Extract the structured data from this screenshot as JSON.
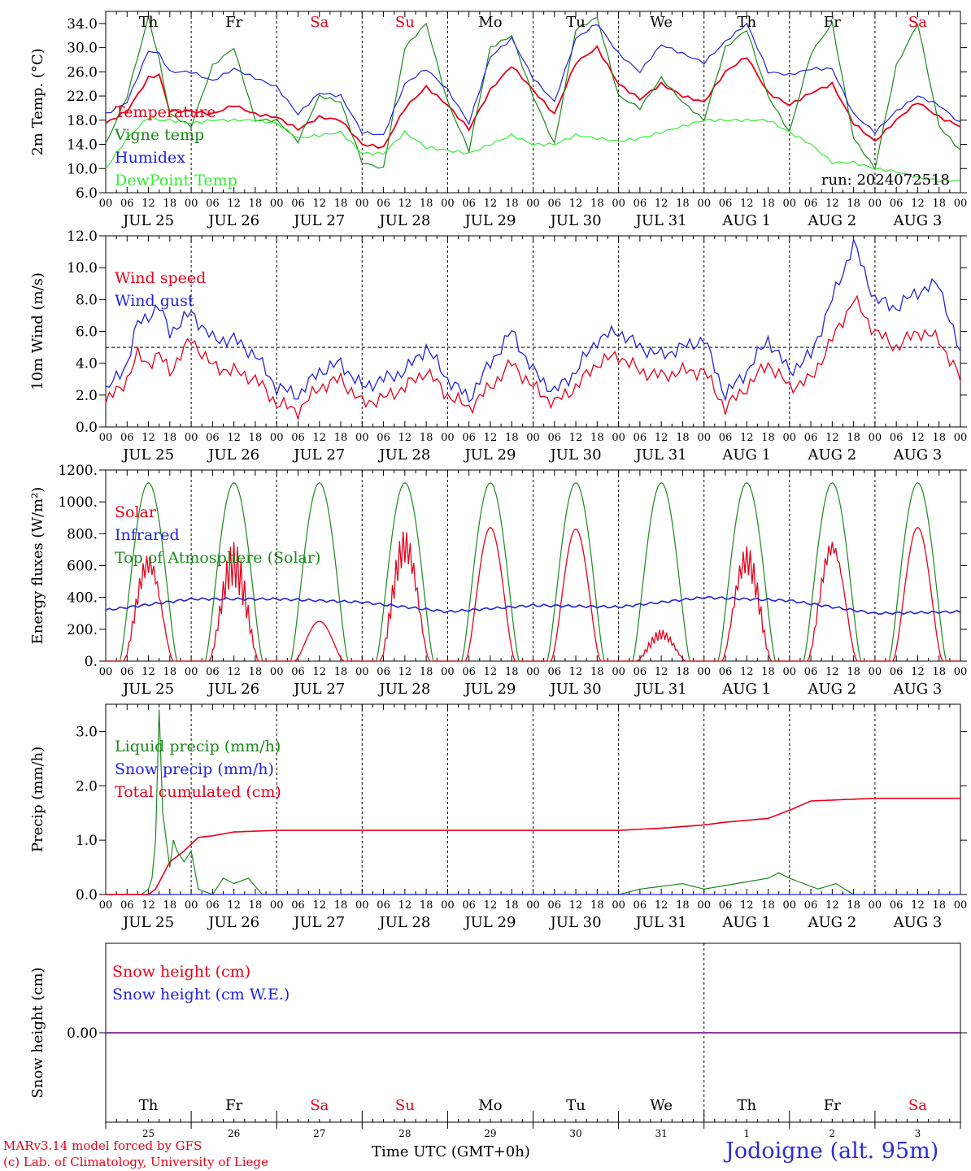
{
  "run_label": "run: 2024072518",
  "footer": {
    "model": "MARv3.14 model forced by GFS",
    "credit": "(c) Lab. of Climatology, University of Liege",
    "time_axis": "Time UTC (GMT+0h)",
    "station": "Jodoigne (alt. 95m)"
  },
  "hour_ticks": [
    "00",
    "06",
    "12",
    "18"
  ],
  "date_labels": [
    "JUL 25",
    "JUL 26",
    "JUL 27",
    "JUL 28",
    "JUL 29",
    "JUL 30",
    "JUL 31",
    "AUG  1",
    "AUG  2",
    "AUG  3"
  ],
  "weekdays": [
    {
      "label": "Th",
      "color": "#000000"
    },
    {
      "label": "Fr",
      "color": "#000000"
    },
    {
      "label": "Sa",
      "color": "#e6001a"
    },
    {
      "label": "Su",
      "color": "#e6001a"
    },
    {
      "label": "Mo",
      "color": "#000000"
    },
    {
      "label": "Tu",
      "color": "#000000"
    },
    {
      "label": "We",
      "color": "#000000"
    },
    {
      "label": "Th",
      "color": "#000000"
    },
    {
      "label": "Fr",
      "color": "#000000"
    },
    {
      "label": "Sa",
      "color": "#e6001a"
    }
  ],
  "day_numbers": [
    "25",
    "26",
    "27",
    "28",
    "29",
    "30",
    "31",
    "1",
    "2",
    "3"
  ],
  "chart_data": [
    {
      "type": "line",
      "ylabel": "2m Temp. (°C)",
      "ylim": [
        6,
        36
      ],
      "yticks": [
        "6.0",
        "10.0",
        "14.0",
        "18.0",
        "22.0",
        "26.0",
        "30.0",
        "34.0"
      ],
      "ytick_values": [
        6,
        10,
        14,
        18,
        22,
        26,
        30,
        34
      ],
      "grid": false,
      "x_hours_from_jul25_00": [
        0,
        6,
        12,
        15,
        18,
        24,
        30,
        36,
        42,
        48,
        54,
        60,
        66,
        72,
        78,
        84,
        90,
        96,
        102,
        108,
        114,
        120,
        126,
        132,
        138,
        144,
        150,
        156,
        162,
        168,
        174,
        180,
        186,
        192,
        198,
        204,
        210,
        216,
        222,
        228,
        234,
        240
      ],
      "series": [
        {
          "name": "Temperature",
          "color": "#e6001a",
          "values": [
            17.5,
            19.5,
            25.0,
            25.5,
            19.5,
            19.5,
            19.0,
            20.5,
            19.0,
            18.5,
            16.5,
            18.5,
            18.0,
            14.0,
            13.5,
            20.0,
            23.5,
            20.5,
            16.5,
            23.0,
            27.0,
            23.0,
            19.0,
            27.5,
            30.0,
            24.0,
            21.5,
            24.0,
            22.0,
            21.0,
            26.0,
            28.5,
            22.5,
            20.5,
            22.5,
            24.0,
            17.5,
            14.5,
            18.0,
            21.0,
            18.5,
            17.0
          ]
        },
        {
          "name": "Vigne temp",
          "color": "#1a8a1a",
          "values": [
            14.0,
            22.0,
            35.0,
            28.0,
            19.0,
            17.0,
            27.0,
            30.0,
            18.0,
            18.0,
            14.5,
            22.0,
            21.0,
            11.0,
            10.0,
            30.0,
            34.0,
            21.0,
            13.0,
            30.0,
            32.0,
            22.0,
            14.0,
            33.0,
            35.0,
            22.0,
            20.0,
            25.0,
            21.0,
            18.0,
            30.0,
            33.0,
            22.0,
            16.0,
            29.0,
            34.0,
            15.0,
            10.0,
            27.0,
            34.0,
            17.0,
            13.0
          ]
        },
        {
          "name": "Humidex",
          "color": "#2222dd",
          "values": [
            19.0,
            21.0,
            29.5,
            29.0,
            26.0,
            26.0,
            24.5,
            26.5,
            25.0,
            23.5,
            19.0,
            22.5,
            22.0,
            16.0,
            15.5,
            24.0,
            26.5,
            23.0,
            17.5,
            28.5,
            31.5,
            25.0,
            21.0,
            31.5,
            34.0,
            29.0,
            26.0,
            30.5,
            29.0,
            27.5,
            31.0,
            34.0,
            26.0,
            25.5,
            26.5,
            26.5,
            19.0,
            16.0,
            19.5,
            22.0,
            20.5,
            17.5
          ]
        },
        {
          "name": "DewPoint Temp",
          "color": "#33ee33",
          "values": [
            10.0,
            15.0,
            18.5,
            18.0,
            18.0,
            17.5,
            18.0,
            18.0,
            18.0,
            17.5,
            15.0,
            15.5,
            16.0,
            12.5,
            12.5,
            16.0,
            13.5,
            13.0,
            12.5,
            14.0,
            15.5,
            14.0,
            14.0,
            15.5,
            15.0,
            14.5,
            15.0,
            16.0,
            17.0,
            18.0,
            18.0,
            18.0,
            18.0,
            16.0,
            14.0,
            11.0,
            11.0,
            10.0,
            9.5,
            8.5,
            8.0,
            8.0
          ]
        }
      ]
    },
    {
      "type": "line",
      "ylabel": "10m Wind (m/s)",
      "ylim": [
        0,
        12
      ],
      "yticks": [
        "0.0",
        "2.0",
        "4.0",
        "6.0",
        "8.0",
        "10.0",
        "12.0"
      ],
      "ytick_values": [
        0,
        2,
        4,
        6,
        8,
        10,
        12
      ],
      "reference_line": 5,
      "grid": false,
      "x_hours_from_jul25_00": [
        0,
        6,
        9,
        12,
        15,
        18,
        21,
        24,
        30,
        36,
        42,
        48,
        54,
        60,
        66,
        72,
        78,
        84,
        90,
        96,
        102,
        108,
        114,
        120,
        126,
        132,
        138,
        144,
        150,
        156,
        162,
        168,
        174,
        180,
        186,
        192,
        198,
        204,
        210,
        216,
        222,
        228,
        234,
        240
      ],
      "series": [
        {
          "name": "Wind speed",
          "color": "#e6001a",
          "values": [
            1.5,
            3.0,
            4.5,
            4.0,
            4.5,
            3.5,
            4.5,
            5.5,
            3.8,
            3.5,
            3.0,
            1.5,
            1.0,
            2.5,
            3.0,
            1.5,
            1.8,
            2.5,
            3.5,
            2.0,
            1.2,
            2.5,
            4.0,
            2.5,
            1.5,
            2.5,
            4.0,
            4.5,
            3.5,
            3.2,
            3.5,
            3.5,
            1.2,
            2.5,
            4.0,
            2.5,
            3.0,
            5.5,
            8.0,
            6.0,
            5.0,
            6.0,
            5.5,
            3.0
          ]
        },
        {
          "name": "Wind gust",
          "color": "#2222dd",
          "values": [
            2.2,
            4.0,
            6.5,
            7.0,
            7.5,
            6.0,
            6.5,
            7.2,
            5.5,
            5.5,
            4.5,
            2.5,
            2.0,
            3.5,
            4.0,
            2.5,
            3.0,
            3.5,
            5.0,
            3.0,
            1.8,
            4.0,
            6.0,
            3.5,
            2.2,
            3.5,
            5.5,
            6.0,
            5.0,
            4.5,
            5.0,
            5.5,
            2.0,
            3.5,
            5.5,
            3.5,
            4.5,
            8.0,
            11.5,
            8.0,
            7.5,
            8.5,
            9.0,
            4.5
          ]
        }
      ]
    },
    {
      "type": "line",
      "ylabel": "Energy fluxes (W/m²)",
      "ylim": [
        0,
        1200
      ],
      "yticks": [
        "0.",
        "200.",
        "400.",
        "600.",
        "800.",
        "1000.",
        "1200."
      ],
      "ytick_values": [
        0,
        200,
        400,
        600,
        800,
        1000,
        1200
      ],
      "grid": false,
      "series": [
        {
          "name": "Solar",
          "color": "#e6001a",
          "daily_peaks": [
            700,
            750,
            250,
            840,
            840,
            830,
            200,
            740,
            810,
            840
          ]
        },
        {
          "name": "Infrared",
          "color": "#2222dd",
          "x_hours_from_jul25_00": [
            0,
            24,
            48,
            72,
            96,
            120,
            144,
            168,
            192,
            216,
            240
          ],
          "values": [
            320,
            390,
            390,
            370,
            310,
            350,
            340,
            400,
            380,
            300,
            310
          ]
        },
        {
          "name": "Top of Atmosphere (Solar)",
          "color": "#1a8a1a",
          "daily_peak": 1120
        }
      ]
    },
    {
      "type": "line",
      "ylabel": "Precip (mm/h)",
      "ylim": [
        0,
        3.5
      ],
      "yticks": [
        "0.0",
        "1.0",
        "2.0",
        "3.0"
      ],
      "ytick_values": [
        0,
        1,
        2,
        3
      ],
      "grid": false,
      "series": [
        {
          "name": "Liquid precip (mm/h)",
          "color": "#1a8a1a",
          "x_hours_from_jul25_00": [
            0,
            10,
            12,
            13,
            14,
            15,
            16,
            18,
            19,
            20,
            21,
            22,
            24,
            26,
            30,
            33,
            36,
            40,
            44,
            50,
            144,
            150,
            162,
            168,
            186,
            189,
            192,
            200,
            205,
            210,
            240
          ],
          "values": [
            0,
            0,
            0.1,
            0.3,
            1.0,
            3.4,
            1.5,
            0.5,
            1.0,
            0.8,
            0.7,
            0.6,
            0.8,
            0.1,
            0,
            0.3,
            0.2,
            0.3,
            0,
            0,
            0,
            0.1,
            0.2,
            0.1,
            0.3,
            0.4,
            0.3,
            0.1,
            0.2,
            0,
            0
          ]
        },
        {
          "name": "Snow precip (mm/h)",
          "color": "#2222dd",
          "x_hours_from_jul25_00": [
            0,
            240
          ],
          "values": [
            0,
            0
          ]
        },
        {
          "name": "Total cumulated (cm)",
          "color": "#e6001a",
          "x_hours_from_jul25_00": [
            0,
            12,
            14,
            18,
            22,
            26,
            30,
            36,
            48,
            72,
            96,
            120,
            144,
            156,
            168,
            174,
            186,
            192,
            198,
            216,
            240
          ],
          "values": [
            0,
            0,
            0.1,
            0.6,
            0.8,
            1.05,
            1.08,
            1.15,
            1.18,
            1.18,
            1.18,
            1.18,
            1.18,
            1.22,
            1.28,
            1.33,
            1.4,
            1.55,
            1.72,
            1.77,
            1.77
          ]
        }
      ]
    },
    {
      "type": "line",
      "ylabel": "Snow height (cm)",
      "yticks": [
        "0.00"
      ],
      "ytick_values": [
        0
      ],
      "grid": false,
      "series": [
        {
          "name": "Snow height (cm)",
          "color": "#e6001a",
          "x_hours_from_jul25_00": [
            0,
            240
          ],
          "values": [
            0,
            0
          ]
        },
        {
          "name": "Snow height (cm W.E.)",
          "color": "#2222dd",
          "x_hours_from_jul25_00": [
            0,
            240
          ],
          "values": [
            0,
            0
          ]
        }
      ]
    }
  ]
}
